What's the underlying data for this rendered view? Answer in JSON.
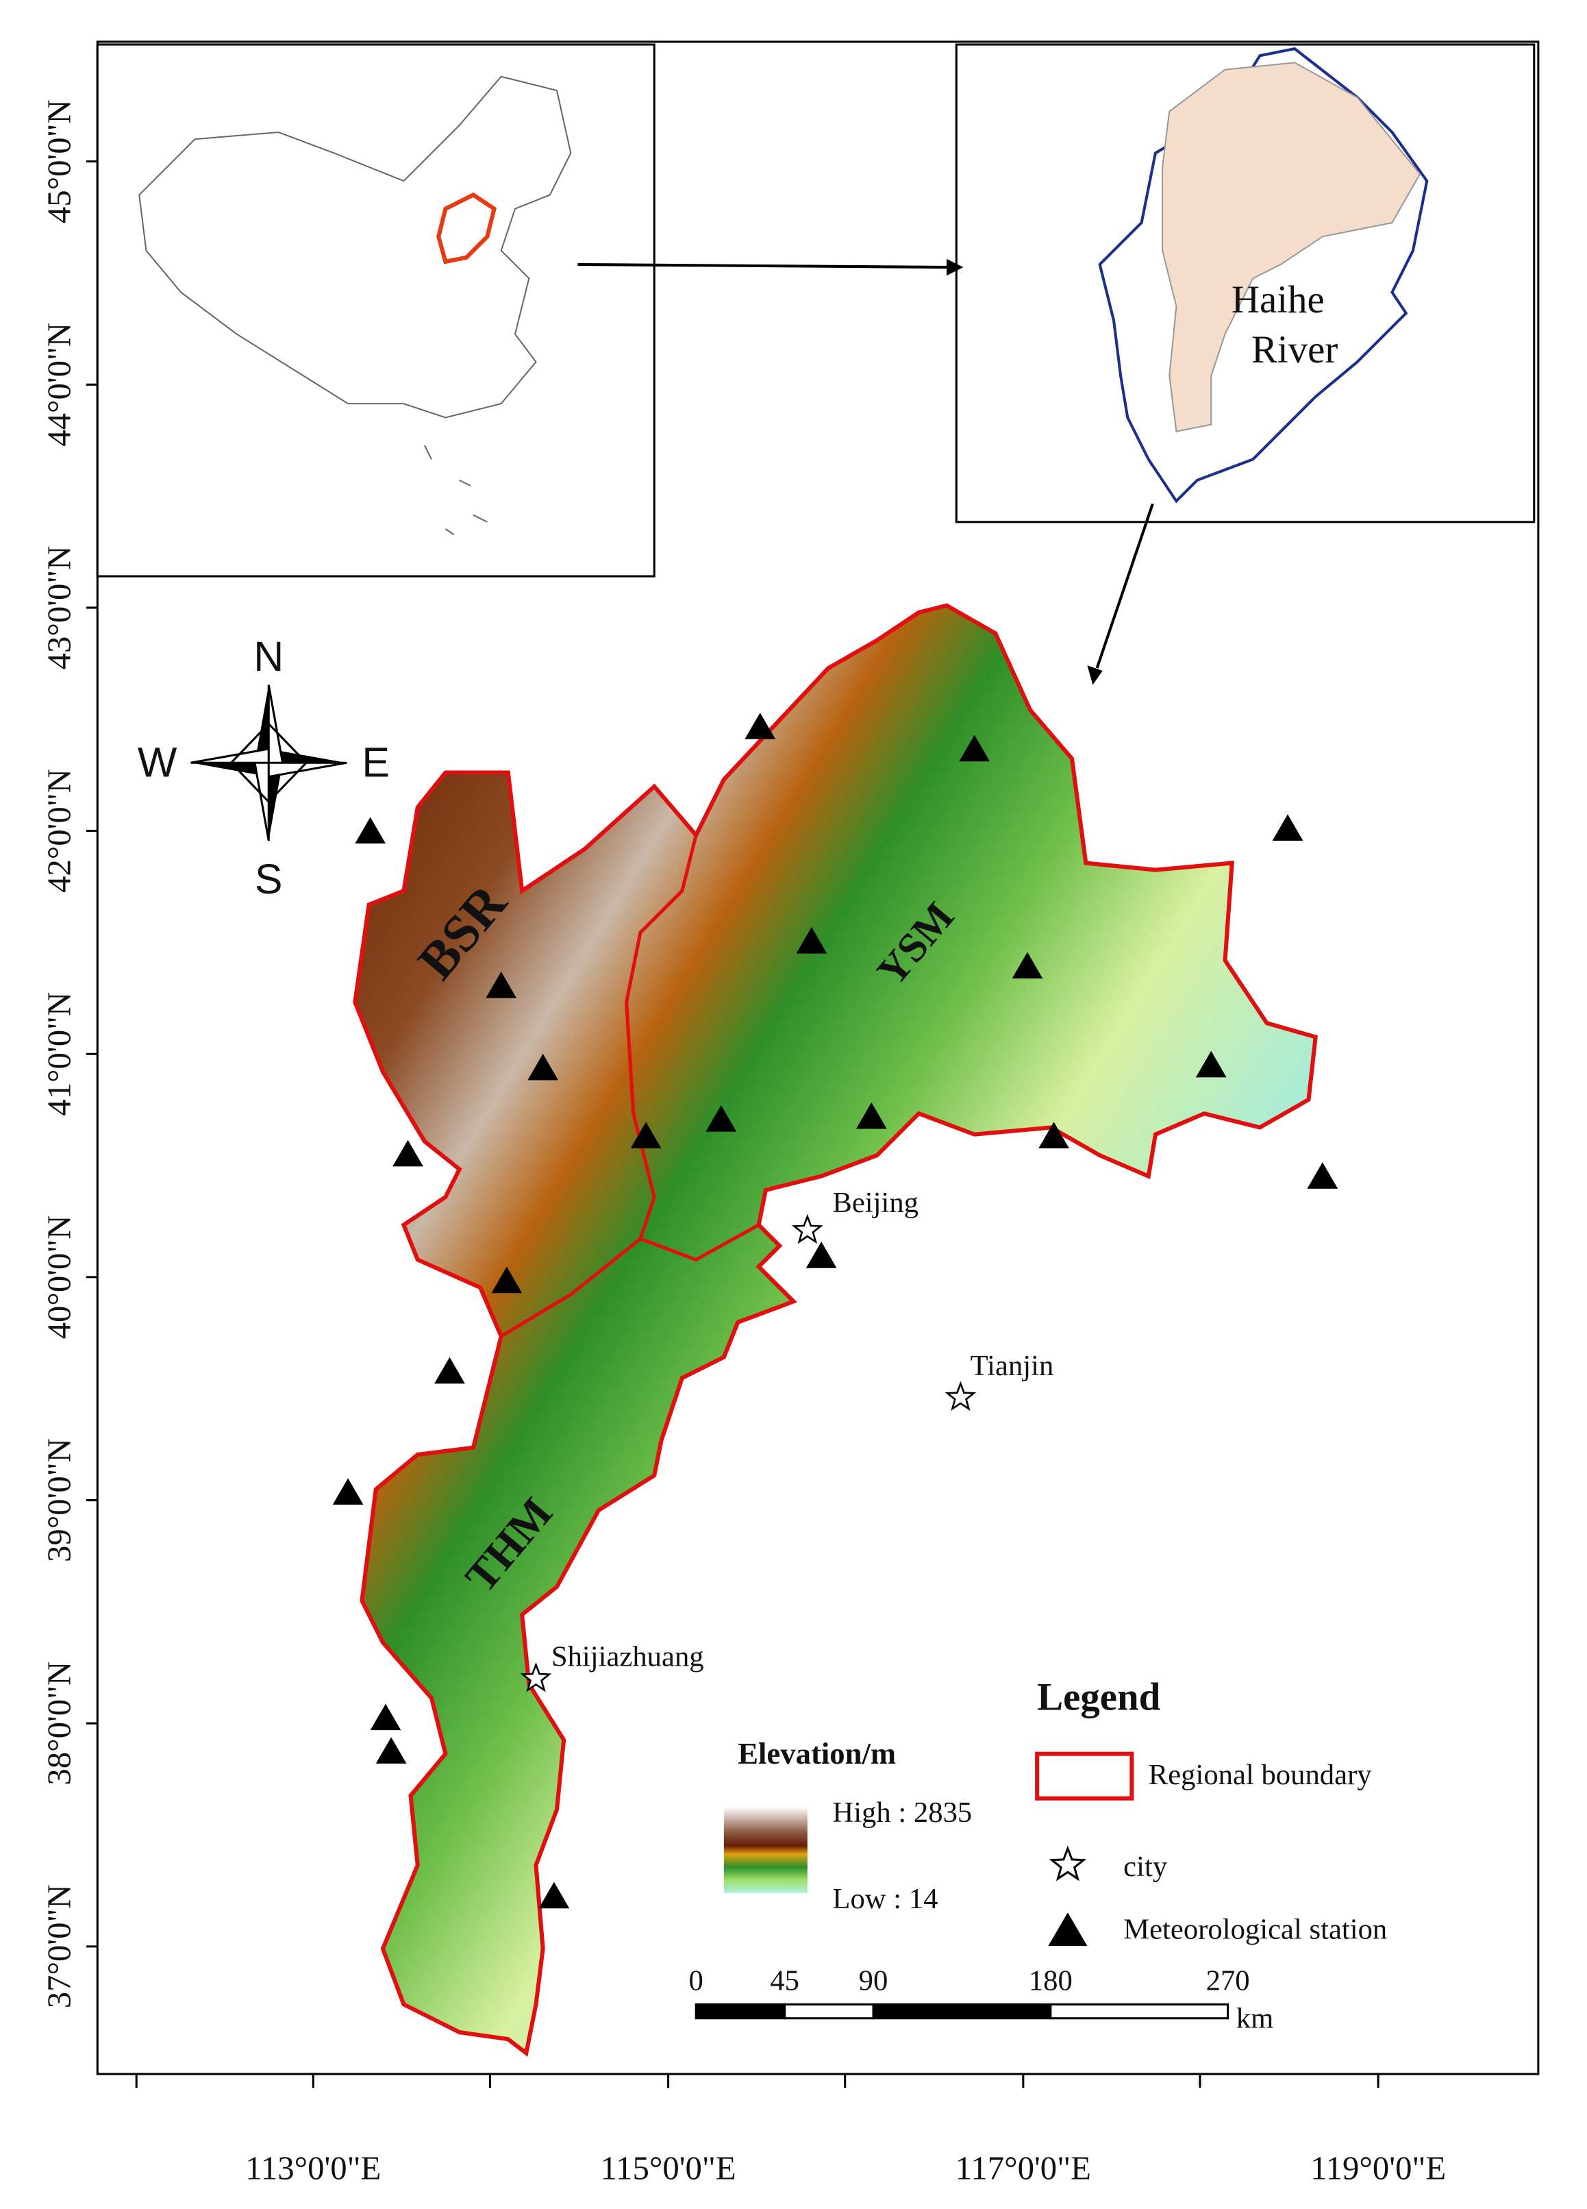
{
  "axes": {
    "lat_labels": [
      "45°0'0\"N",
      "44°0'0\"N",
      "43°0'0\"N",
      "42°0'0\"N",
      "41°0'0\"N",
      "40°0'0\"N",
      "39°0'0\"N",
      "38°0'0\"N",
      "37°0'0\"N"
    ],
    "lon_labels": [
      "113°0'0\"E",
      "115°0'0\"E",
      "117°0'0\"E",
      "119°0'0\"E"
    ]
  },
  "inset": {
    "river_label": [
      "Haihe",
      "River"
    ]
  },
  "compass": {
    "north": "N",
    "south": "S",
    "west": "W",
    "east": "E"
  },
  "regions": [
    "BSR",
    "YSM",
    "THM"
  ],
  "cities": [
    "Beijing",
    "Tianjin",
    "Shijiazhuang"
  ],
  "elevation_legend": {
    "title": "Elevation/m",
    "high": "High : 2835",
    "low": "Low : 14"
  },
  "legend": {
    "title": "Legend",
    "items": [
      "Regional boundary",
      "city",
      "Meteorological station"
    ]
  },
  "scale_bar": {
    "labels": [
      0,
      45,
      90,
      180,
      270
    ],
    "unit": "km"
  }
}
